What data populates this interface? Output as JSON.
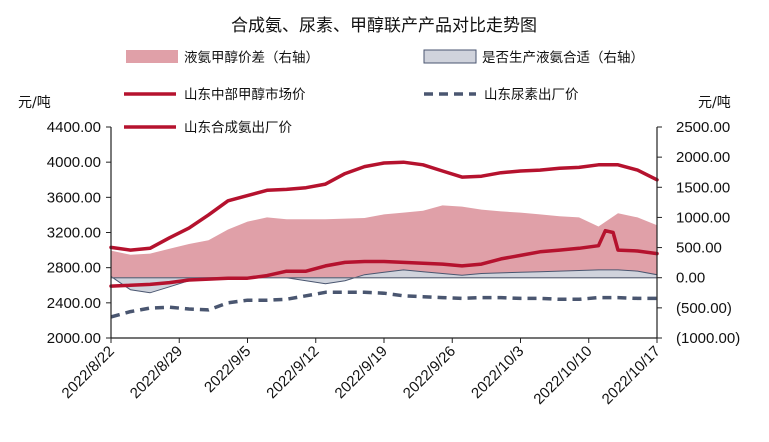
{
  "chart_data": {
    "type": "line",
    "title": "合成氨、尿素、甲醇联产产品对比走势图",
    "left_axis": {
      "label": "元/吨",
      "range": [
        2000,
        4400
      ],
      "ticks": [
        "2000.00",
        "2400.00",
        "2800.00",
        "3200.00",
        "3600.00",
        "4000.00",
        "4400.00"
      ]
    },
    "right_axis": {
      "label": "元/吨",
      "range": [
        -1000,
        2500
      ],
      "ticks": [
        "(1000.00)",
        "(500.00)",
        "0.00",
        "500.00",
        "1000.00",
        "1500.00",
        "2000.00",
        "2500.00"
      ]
    },
    "x_ticks": [
      "2022/8/22",
      "2022/8/29",
      "2022/9/5",
      "2022/9/12",
      "2022/9/19",
      "2022/9/26",
      "2022/10/3",
      "2022/10/10",
      "2022/10/17"
    ],
    "x_range": [
      0,
      56
    ],
    "series": [
      {
        "name": "液氨甲醇价差（右轴）",
        "kind": "area",
        "axis": "right",
        "color": "#e0a0a8",
        "x": [
          0,
          2,
          4,
          6,
          8,
          10,
          12,
          14,
          16,
          18,
          20,
          22,
          24,
          26,
          28,
          30,
          32,
          34,
          36,
          38,
          40,
          42,
          44,
          46,
          48,
          50,
          52,
          54,
          56
        ],
        "values": [
          450,
          380,
          400,
          480,
          560,
          620,
          800,
          930,
          1000,
          970,
          970,
          970,
          980,
          990,
          1050,
          1080,
          1110,
          1200,
          1180,
          1130,
          1100,
          1080,
          1050,
          1020,
          1000,
          850,
          1070,
          1000,
          870
        ]
      },
      {
        "name": "是否生产液氨合适（右轴）",
        "kind": "area",
        "axis": "right",
        "color": "#d0d3dc",
        "x": [
          0,
          2,
          4,
          6,
          8,
          10,
          12,
          14,
          16,
          18,
          20,
          22,
          24,
          26,
          28,
          30,
          32,
          34,
          36,
          38,
          40,
          42,
          44,
          46,
          48,
          50,
          52,
          54,
          56
        ],
        "values": [
          20,
          -200,
          -250,
          -150,
          -50,
          0,
          0,
          0,
          0,
          0,
          -50,
          -100,
          -50,
          50,
          90,
          130,
          100,
          70,
          40,
          70,
          80,
          90,
          100,
          110,
          120,
          130,
          130,
          110,
          50
        ]
      },
      {
        "name": "山东中部甲醇市场价",
        "kind": "line",
        "axis": "left",
        "color": "#b5122e",
        "dash": "solid",
        "x": [
          0,
          2,
          4,
          6,
          8,
          10,
          12,
          14,
          16,
          18,
          20,
          22,
          24,
          26,
          28,
          30,
          32,
          34,
          36,
          38,
          40,
          42,
          44,
          46,
          48,
          50,
          50.7,
          51.5,
          52,
          54,
          56
        ],
        "values": [
          2590,
          2600,
          2610,
          2630,
          2660,
          2670,
          2680,
          2680,
          2710,
          2760,
          2760,
          2820,
          2860,
          2870,
          2870,
          2860,
          2850,
          2840,
          2820,
          2840,
          2900,
          2940,
          2980,
          3000,
          3020,
          3050,
          3220,
          3200,
          3000,
          2990,
          2960
        ]
      },
      {
        "name": "山东尿素出厂价",
        "kind": "line",
        "axis": "left",
        "color": "#4a5670",
        "dash": "dashed",
        "x": [
          0,
          2,
          4,
          6,
          8,
          10,
          12,
          14,
          16,
          18,
          20,
          22,
          24,
          26,
          28,
          30,
          32,
          34,
          36,
          38,
          40,
          42,
          44,
          46,
          48,
          50,
          52,
          54,
          56
        ],
        "values": [
          2240,
          2300,
          2340,
          2350,
          2330,
          2320,
          2400,
          2430,
          2430,
          2440,
          2480,
          2520,
          2520,
          2520,
          2510,
          2480,
          2470,
          2460,
          2450,
          2460,
          2460,
          2450,
          2450,
          2440,
          2440,
          2460,
          2460,
          2450,
          2450
        ]
      },
      {
        "name": "山东合成氨出厂价",
        "kind": "line",
        "axis": "left",
        "color": "#b5122e",
        "dash": "solid",
        "x": [
          0,
          2,
          4,
          6,
          8,
          10,
          12,
          14,
          16,
          18,
          20,
          22,
          24,
          26,
          28,
          30,
          32,
          34,
          36,
          38,
          40,
          42,
          44,
          46,
          48,
          50,
          52,
          54,
          56
        ],
        "values": [
          3030,
          3000,
          3020,
          3140,
          3250,
          3400,
          3560,
          3620,
          3680,
          3690,
          3710,
          3750,
          3870,
          3950,
          3990,
          4000,
          3970,
          3900,
          3830,
          3840,
          3880,
          3900,
          3910,
          3930,
          3940,
          3970,
          3970,
          3910,
          3800
        ]
      }
    ],
    "legend": [
      {
        "label": "液氨甲醇价差（右轴）",
        "swatch": "area",
        "color": "#e0a0a8"
      },
      {
        "label": "是否生产液氨合适（右轴）",
        "swatch": "area",
        "color": "#d0d3dc"
      },
      {
        "label": "山东中部甲醇市场价",
        "swatch": "line",
        "color": "#b5122e"
      },
      {
        "label": "山东尿素出厂价",
        "swatch": "dashed",
        "color": "#4a5670"
      },
      {
        "label": "山东合成氨出厂价",
        "swatch": "line",
        "color": "#b5122e"
      }
    ],
    "negative_tick_color": "#e8202a"
  }
}
